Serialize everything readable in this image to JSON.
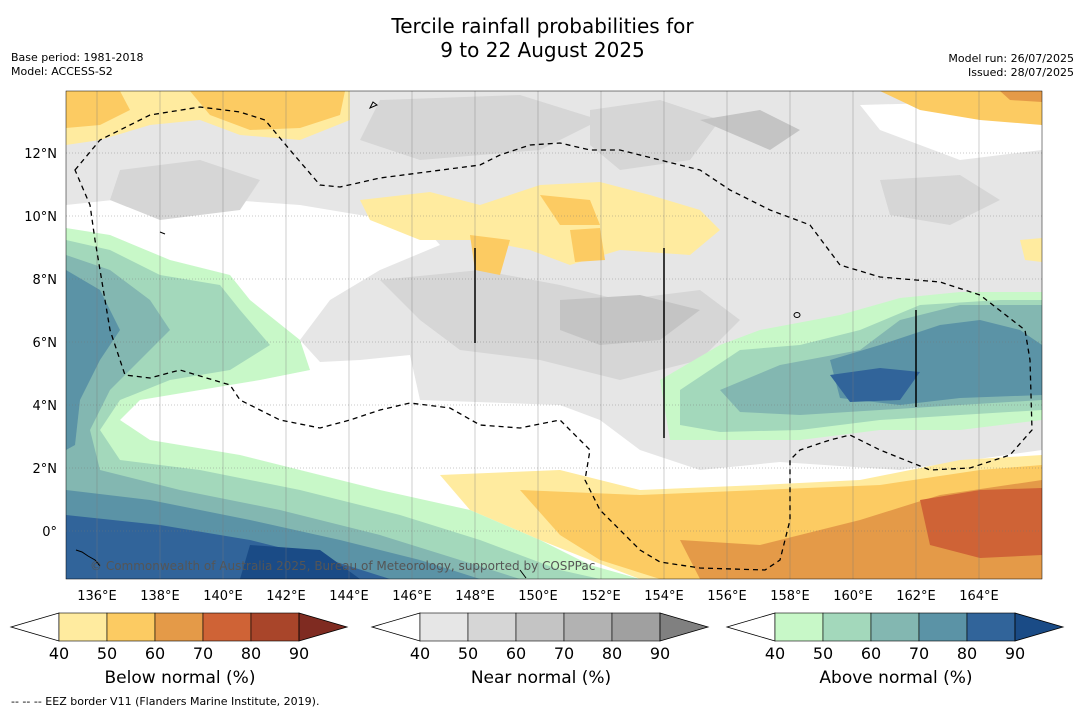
{
  "header": {
    "title_line1": "Tercile rainfall probabilities for",
    "title_line2": "9 to 22 August 2025",
    "base_period": "Base period: 1981-2018",
    "model": "Model: ACCESS-S2",
    "model_run": "Model run: 26/07/2025",
    "issued": "Issued: 28/07/2025"
  },
  "map": {
    "longitude_labels": [
      "136°E",
      "138°E",
      "140°E",
      "142°E",
      "144°E",
      "146°E",
      "148°E",
      "150°E",
      "152°E",
      "154°E",
      "156°E",
      "158°E",
      "160°E",
      "162°E",
      "164°E"
    ],
    "latitude_labels": [
      "12°N",
      "10°N",
      "8°N",
      "6°N",
      "4°N",
      "2°N",
      "0°"
    ],
    "copyright": "© Commonwealth of Australia 2025, Bureau of Meteorology, supported by COSPPac"
  },
  "colorbars": [
    {
      "label": "Below normal (%)",
      "ticks": [
        "40",
        "50",
        "60",
        "70",
        "80",
        "90"
      ],
      "colors": [
        "#ffeb9f",
        "#fccb62",
        "#e49a48",
        "#cf6336",
        "#a9452a",
        "#7f2b21"
      ]
    },
    {
      "label": "Near normal (%)",
      "ticks": [
        "40",
        "50",
        "60",
        "70",
        "80",
        "90"
      ],
      "colors": [
        "#e6e6e6",
        "#d6d6d6",
        "#c4c4c4",
        "#b2b2b2",
        "#a0a0a0",
        "#808080"
      ]
    },
    {
      "label": "Above normal (%)",
      "ticks": [
        "40",
        "50",
        "60",
        "70",
        "80",
        "90"
      ],
      "colors": [
        "#c8f8c8",
        "#a3d8bb",
        "#83b7b1",
        "#5b93a6",
        "#31649a",
        "#1a4b86"
      ]
    }
  ],
  "footer": {
    "eez_legend": "--  --  -- EEZ border V11 (Flanders Marine Institute, 2019)."
  }
}
